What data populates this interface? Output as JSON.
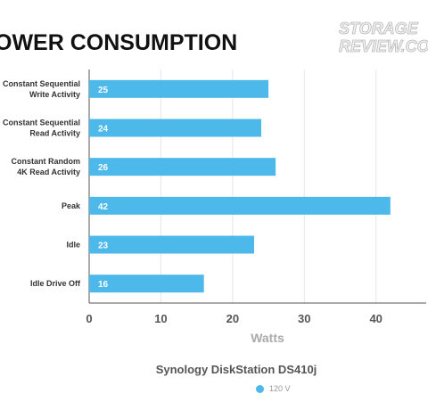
{
  "title": "OWER CONSUMPTION",
  "logo": {
    "text": "STORAGE REVIEW.COM"
  },
  "legend": {
    "title": "Synology DiskStation DS410j",
    "series_label": "120 V"
  },
  "colors": {
    "bar": "#4db8ea",
    "grid": "#e6e6e6",
    "axis": "#555555"
  },
  "chart_data": {
    "type": "bar",
    "orientation": "horizontal",
    "title": "OWER CONSUMPTION",
    "xlabel": "Watts",
    "ylabel": "",
    "categories": [
      "Constant Sequential|Write Activity",
      "Constant Sequential|Read Activity",
      "Constant Random|4K Read Activity",
      "Peak",
      "Idle",
      "Idle Drive Off"
    ],
    "series": [
      {
        "name": "120 V",
        "values": [
          25,
          24,
          26,
          42,
          23,
          16
        ]
      }
    ],
    "xlim": [
      0,
      47
    ],
    "xticks": [
      0,
      10,
      20,
      30,
      40
    ],
    "grid": true,
    "legend_position": "bottom"
  }
}
